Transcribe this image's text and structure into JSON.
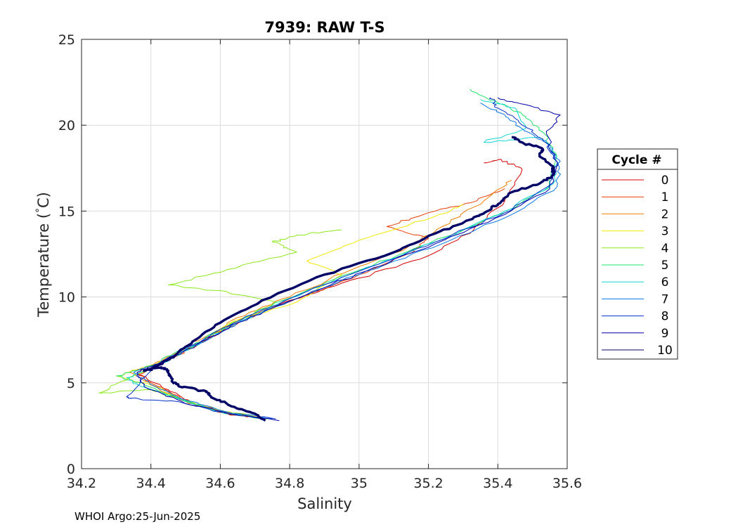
{
  "chart_data": {
    "type": "line",
    "title": "7939: RAW T-S",
    "xlabel": "Salinity",
    "ylabel_main": "Temperature (",
    "ylabel_deg": "°",
    "ylabel_unit": "C)",
    "xlim": [
      34.2,
      35.6
    ],
    "ylim": [
      0,
      25
    ],
    "xticks": [
      34.2,
      34.4,
      34.6,
      34.8,
      35,
      35.2,
      35.4,
      35.6
    ],
    "xtick_labels": [
      "34.2",
      "34.4",
      "34.6",
      "34.8",
      "35",
      "35.2",
      "35.4",
      "35.6"
    ],
    "yticks": [
      0,
      5,
      10,
      15,
      20,
      25
    ],
    "ytick_labels": [
      "0",
      "5",
      "10",
      "15",
      "20",
      "25"
    ],
    "grid": true,
    "legend": {
      "title": "Cycle #",
      "placement": "right"
    },
    "series": [
      {
        "name": "0",
        "color": "#d40000",
        "bold": false,
        "x": [
          34.73,
          34.62,
          34.52,
          34.45,
          34.36,
          34.42,
          34.47,
          34.56,
          34.66,
          34.8,
          35.0,
          35.2,
          35.33,
          35.42,
          35.47,
          35.41,
          35.36
        ],
        "y": [
          2.9,
          3.2,
          3.8,
          4.6,
          5.6,
          6.1,
          6.6,
          7.5,
          8.6,
          9.8,
          11.1,
          12.4,
          13.9,
          15.6,
          17.4,
          18.0,
          17.8
        ]
      },
      {
        "name": "1",
        "color": "#e83a00",
        "bold": false,
        "x": [
          34.74,
          34.62,
          34.52,
          34.44,
          34.36,
          34.42,
          34.48,
          34.56,
          34.66,
          34.82,
          35.0,
          35.14,
          35.2,
          35.08,
          35.2,
          35.34,
          35.42
        ],
        "y": [
          2.9,
          3.2,
          3.8,
          4.6,
          5.5,
          6.0,
          6.6,
          7.6,
          8.7,
          9.9,
          11.3,
          12.5,
          13.4,
          14.1,
          14.9,
          15.6,
          16.3
        ]
      },
      {
        "name": "2",
        "color": "#ef7f00",
        "bold": false,
        "x": [
          34.73,
          34.6,
          34.5,
          34.42,
          34.34,
          34.41,
          34.47,
          34.55,
          34.65,
          34.8,
          34.98,
          35.14,
          35.24,
          35.36,
          35.44
        ],
        "y": [
          2.9,
          3.3,
          3.9,
          4.7,
          5.6,
          6.1,
          6.7,
          7.6,
          8.8,
          10.0,
          11.6,
          12.9,
          14.1,
          15.6,
          16.8
        ]
      },
      {
        "name": "3",
        "color": "#f2e800",
        "bold": false,
        "x": [
          34.72,
          34.6,
          34.49,
          34.41,
          34.3,
          34.38,
          34.46,
          34.54,
          34.64,
          34.82,
          34.95,
          34.85,
          35.0,
          35.22,
          35.3
        ],
        "y": [
          3.0,
          3.4,
          4.0,
          4.8,
          5.4,
          5.9,
          6.5,
          7.3,
          8.6,
          9.7,
          11.3,
          12.1,
          13.3,
          14.7,
          15.4
        ]
      },
      {
        "name": "4",
        "color": "#8de81c",
        "bold": false,
        "x": [
          34.74,
          34.62,
          34.5,
          34.4,
          34.25,
          34.35,
          34.44,
          34.52,
          34.62,
          34.76,
          34.62,
          34.45,
          34.62,
          34.82,
          34.75,
          34.82,
          34.95
        ],
        "y": [
          2.9,
          3.3,
          3.9,
          4.6,
          4.4,
          5.4,
          6.2,
          7.1,
          8.3,
          9.7,
          10.3,
          10.7,
          11.6,
          12.6,
          13.2,
          13.6,
          13.9
        ]
      },
      {
        "name": "5",
        "color": "#22e46a",
        "bold": false,
        "x": [
          34.73,
          34.6,
          34.49,
          34.38,
          34.3,
          34.4,
          34.5,
          34.62,
          34.78,
          34.98,
          35.2,
          35.42,
          35.55,
          35.57,
          35.53,
          35.48,
          35.4,
          35.32
        ],
        "y": [
          2.9,
          3.3,
          4.0,
          4.9,
          5.4,
          6.0,
          7.0,
          8.3,
          9.8,
          11.4,
          13.1,
          14.9,
          16.4,
          18.2,
          19.6,
          20.5,
          21.3,
          22.1
        ]
      },
      {
        "name": "6",
        "color": "#12d6d6",
        "bold": false,
        "x": [
          34.74,
          34.6,
          34.47,
          34.36,
          34.33,
          34.42,
          34.52,
          34.64,
          34.8,
          35.0,
          35.22,
          35.42,
          35.56,
          35.57,
          35.52,
          35.36,
          35.48,
          35.45,
          35.35
        ],
        "y": [
          2.9,
          3.3,
          4.1,
          4.9,
          5.3,
          6.0,
          7.1,
          8.4,
          9.9,
          11.5,
          13.2,
          15.0,
          16.6,
          18.2,
          19.3,
          19.0,
          19.8,
          21.0,
          21.5
        ]
      },
      {
        "name": "7",
        "color": "#0a77e6",
        "bold": false,
        "x": [
          34.75,
          34.62,
          34.5,
          34.4,
          34.35,
          34.43,
          34.53,
          34.65,
          34.82,
          35.02,
          35.24,
          35.44,
          35.57,
          35.58,
          35.54,
          35.47,
          35.42,
          35.35
        ],
        "y": [
          2.9,
          3.3,
          4.0,
          4.9,
          5.6,
          6.2,
          7.2,
          8.5,
          9.9,
          11.5,
          13.1,
          14.8,
          16.4,
          17.9,
          19.0,
          19.8,
          20.6,
          21.3
        ]
      },
      {
        "name": "8",
        "color": "#0a30c8",
        "bold": false,
        "x": [
          34.76,
          34.6,
          34.48,
          34.34,
          34.33,
          34.42,
          34.52,
          34.64,
          34.8,
          35.0,
          35.22,
          35.42,
          35.55,
          35.57,
          35.53,
          35.46,
          35.4,
          35.38
        ],
        "y": [
          2.9,
          3.3,
          3.9,
          4.1,
          4.2,
          6.1,
          7.2,
          8.5,
          9.9,
          11.5,
          13.2,
          14.9,
          16.5,
          17.9,
          19.2,
          20.2,
          21.0,
          21.6
        ]
      },
      {
        "name": "9",
        "color": "#0000a8",
        "bold": false,
        "x": [
          34.77,
          34.62,
          34.49,
          34.38,
          34.36,
          34.43,
          34.53,
          34.65,
          34.82,
          35.02,
          35.22,
          35.42,
          35.55,
          35.57,
          35.54,
          35.58,
          35.48,
          35.4
        ],
        "y": [
          2.8,
          3.2,
          3.9,
          4.8,
          5.6,
          6.2,
          7.2,
          8.5,
          9.9,
          11.5,
          13.1,
          14.8,
          16.3,
          17.6,
          19.5,
          20.6,
          21.2,
          21.6
        ]
      },
      {
        "name": "10",
        "color": "#000066",
        "bold": true,
        "x": [
          34.73,
          34.7,
          34.64,
          34.58,
          34.56,
          34.48,
          34.46,
          34.45,
          34.43,
          34.38,
          34.42,
          34.47,
          34.52,
          34.6,
          34.72,
          34.9,
          35.1,
          35.22,
          35.32,
          35.37,
          35.4,
          35.44,
          35.52,
          35.56,
          35.56,
          35.52,
          35.53,
          35.47,
          35.44
        ],
        "y": [
          2.8,
          3.2,
          3.6,
          4.1,
          4.5,
          4.8,
          5.1,
          5.7,
          5.9,
          5.7,
          6.0,
          6.6,
          7.4,
          8.5,
          9.8,
          11.3,
          12.6,
          13.7,
          14.5,
          15.0,
          15.4,
          16.1,
          16.6,
          17.1,
          17.6,
          18.2,
          18.6,
          19.0,
          19.3
        ]
      }
    ]
  },
  "footer": "WHOI Argo:25-Jun-2025"
}
